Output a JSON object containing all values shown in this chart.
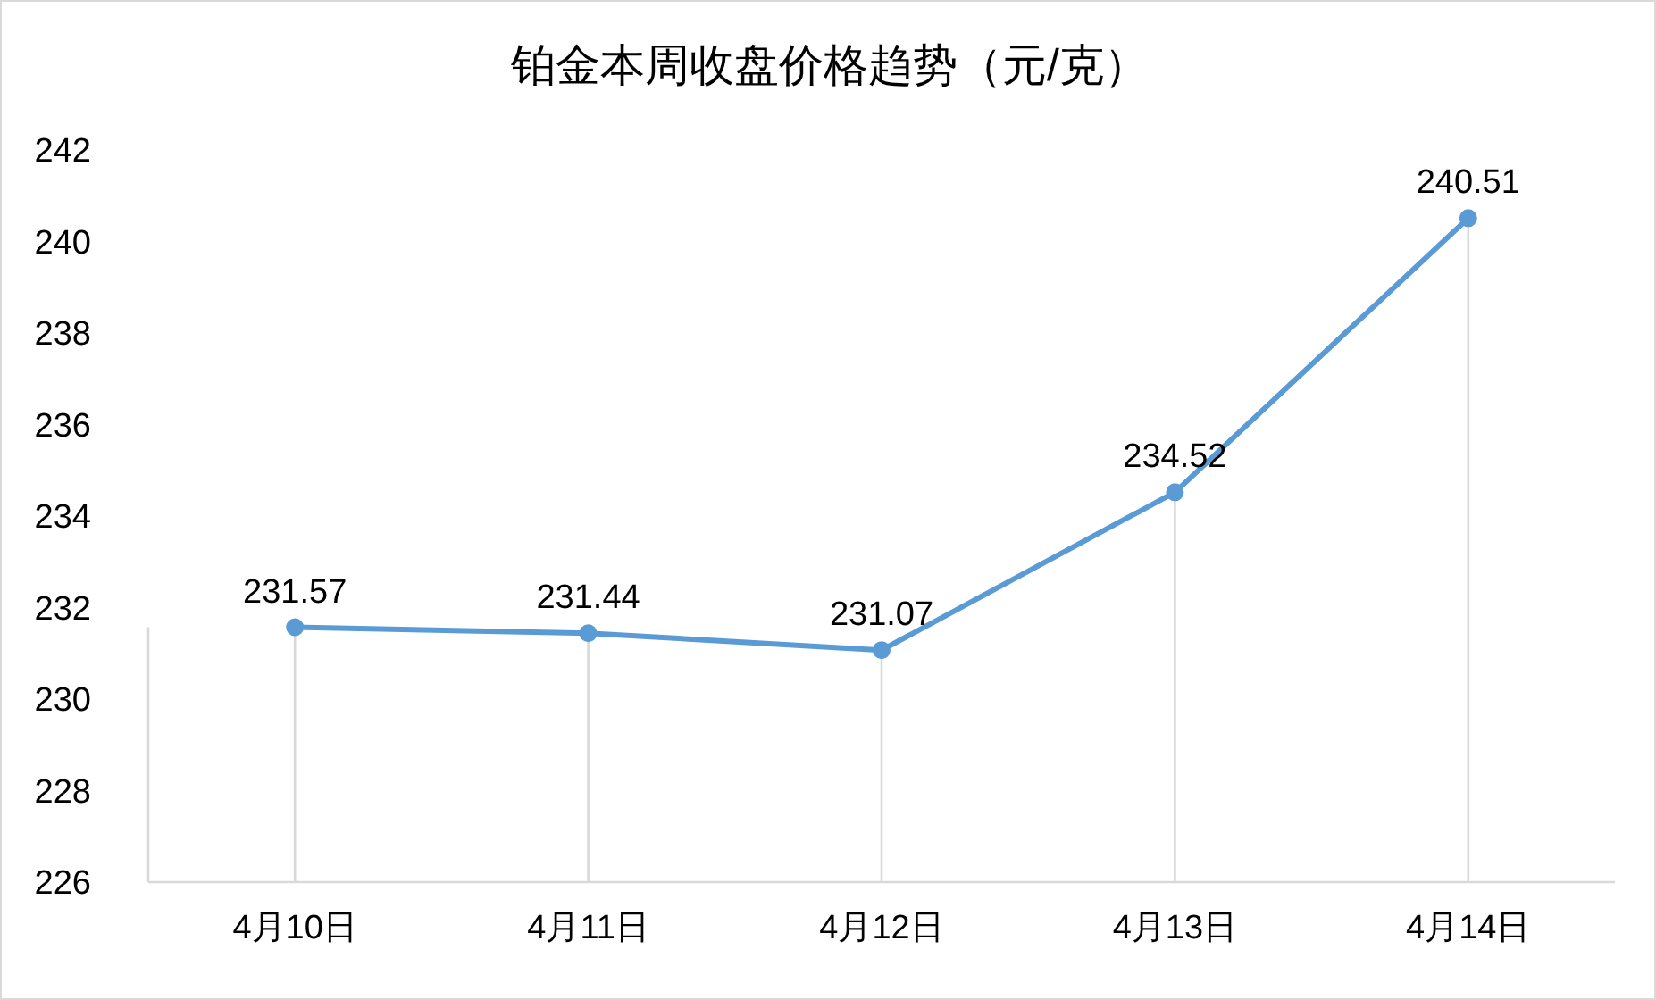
{
  "chart_data": {
    "type": "line",
    "title": "铂金本周收盘价格趋势（元/克）",
    "categories": [
      "4月10日",
      "4月11日",
      "4月12日",
      "4月13日",
      "4月14日"
    ],
    "series": [
      {
        "color": "#5b9bd5",
        "values": [
          231.57,
          231.44,
          231.07,
          234.52,
          240.51
        ]
      }
    ],
    "ylim": [
      226,
      242
    ],
    "yticks": [
      226,
      228,
      230,
      232,
      234,
      236,
      238,
      240,
      242
    ],
    "data_labels": true,
    "marker": "circle",
    "grid": "x"
  }
}
